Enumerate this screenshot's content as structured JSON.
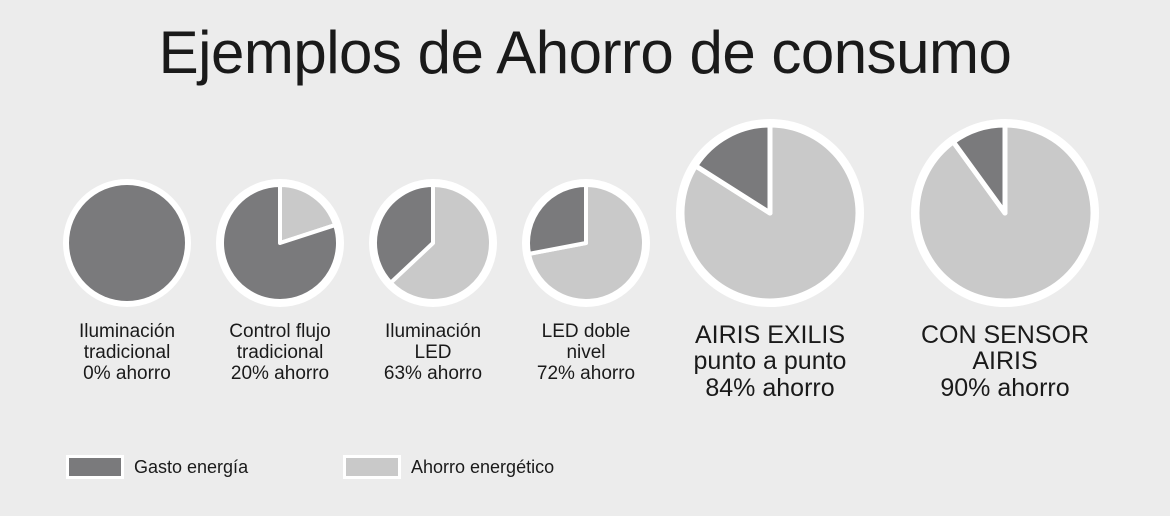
{
  "title": "Ejemplos de Ahorro de consumo",
  "colors": {
    "gasto": "#7a7a7c",
    "ahorro": "#c9c9c9",
    "border": "#ffffff",
    "background": "#ececec"
  },
  "chart_data": {
    "type": "pie",
    "series": [
      "Gasto energía",
      "Ahorro energético"
    ],
    "charts": [
      {
        "label_lines": [
          "Iluminación",
          "tradicional",
          "0% ahorro"
        ],
        "ahorro_percent": 0,
        "gasto_percent": 100
      },
      {
        "label_lines": [
          "Control flujo",
          "tradicional",
          "20% ahorro"
        ],
        "ahorro_percent": 20,
        "gasto_percent": 80
      },
      {
        "label_lines": [
          "Iluminación",
          "LED",
          "63% ahorro"
        ],
        "ahorro_percent": 63,
        "gasto_percent": 37
      },
      {
        "label_lines": [
          "LED doble",
          "nivel",
          "72% ahorro"
        ],
        "ahorro_percent": 72,
        "gasto_percent": 28
      },
      {
        "label_lines": [
          "AIRIS EXILIS",
          "punto a punto",
          "84% ahorro"
        ],
        "ahorro_percent": 84,
        "gasto_percent": 16
      },
      {
        "label_lines": [
          "CON SENSOR",
          "AIRIS",
          "90% ahorro"
        ],
        "ahorro_percent": 90,
        "gasto_percent": 10
      }
    ]
  },
  "legend": [
    {
      "label": "Gasto energía",
      "color_key": "gasto"
    },
    {
      "label": "Ahorro energético",
      "color_key": "ahorro"
    }
  ]
}
